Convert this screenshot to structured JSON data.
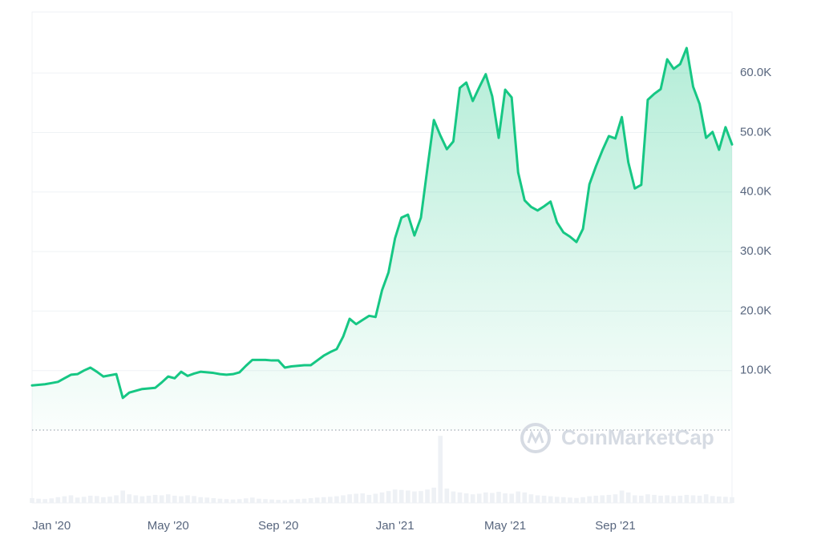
{
  "chart_data": {
    "type": "line",
    "categories": [
      null,
      null,
      null,
      "Jan '20",
      null,
      null,
      null,
      null,
      null,
      null,
      null,
      null,
      null,
      null,
      null,
      null,
      null,
      null,
      null,
      null,
      null,
      "May '20",
      null,
      null,
      null,
      null,
      null,
      null,
      null,
      null,
      null,
      null,
      null,
      null,
      null,
      null,
      null,
      null,
      "Sep '20",
      null,
      null,
      null,
      null,
      null,
      null,
      null,
      null,
      null,
      null,
      null,
      null,
      null,
      null,
      null,
      null,
      null,
      "Jan '21",
      null,
      null,
      null,
      null,
      null,
      null,
      null,
      null,
      null,
      null,
      null,
      null,
      null,
      null,
      null,
      null,
      "May '21",
      null,
      null,
      null,
      null,
      null,
      null,
      null,
      null,
      null,
      null,
      null,
      null,
      null,
      null,
      null,
      null,
      "Sep '21",
      null,
      null,
      null,
      null,
      null,
      null,
      null,
      null,
      null,
      null,
      null,
      null,
      null,
      null,
      null,
      null,
      null,
      null
    ],
    "series": [
      {
        "color": "#16c784",
        "values": [
          7500,
          7600,
          7700,
          7900,
          8100,
          8700,
          9300,
          9400,
          10000,
          10500,
          9800,
          9000,
          9200,
          9400,
          5400,
          6300,
          6600,
          6900,
          7000,
          7100,
          8000,
          9000,
          8700,
          9800,
          9100,
          9500,
          9800,
          9700,
          9600,
          9400,
          9300,
          9400,
          9700,
          10800,
          11800,
          11800,
          11800,
          11700,
          11700,
          10500,
          10700,
          10800,
          10900,
          10900,
          11700,
          12500,
          13100,
          13600,
          15700,
          18700,
          17800,
          18500,
          19200,
          19000,
          23500,
          26500,
          32200,
          35700,
          36200,
          32700,
          35700,
          44000,
          52100,
          49500,
          47200,
          48500,
          57500,
          58400,
          55300,
          57600,
          59800,
          56100,
          49100,
          57200,
          55900,
          43300,
          38600,
          37500,
          36900,
          37600,
          38400,
          34900,
          33200,
          32500,
          31600,
          33800,
          41300,
          44300,
          47000,
          49400,
          49000,
          52600,
          45000,
          40600,
          41200,
          55500,
          56500,
          57300,
          62300,
          60700,
          61500,
          64200,
          57700,
          54800,
          49100,
          50100,
          47100,
          50900,
          48000
        ]
      },
      {
        "type": "bar",
        "axis": "y2",
        "color": "#eef1f5",
        "values": [
          25,
          22,
          20,
          24,
          30,
          35,
          40,
          28,
          32,
          38,
          36,
          30,
          33,
          40,
          65,
          45,
          40,
          35,
          38,
          42,
          40,
          45,
          38,
          35,
          40,
          36,
          30,
          28,
          25,
          22,
          20,
          18,
          20,
          24,
          28,
          22,
          20,
          18,
          16,
          15,
          18,
          20,
          22,
          25,
          28,
          30,
          32,
          35,
          40,
          45,
          48,
          50,
          42,
          48,
          55,
          62,
          70,
          68,
          65,
          60,
          62,
          70,
          80,
          350,
          75,
          60,
          55,
          50,
          45,
          48,
          55,
          52,
          58,
          50,
          48,
          60,
          55,
          45,
          40,
          38,
          35,
          32,
          30,
          28,
          26,
          30,
          35,
          38,
          40,
          42,
          45,
          65,
          55,
          40,
          38,
          45,
          42,
          38,
          40,
          36,
          38,
          42,
          40,
          38,
          45,
          36,
          34,
          32,
          30
        ]
      }
    ],
    "ylim": [
      0,
      70250
    ],
    "yticks": [
      {
        "value": 10000,
        "label": "10.0K"
      },
      {
        "value": 20000,
        "label": "20.0K"
      },
      {
        "value": 30000,
        "label": "30.0K"
      },
      {
        "value": 40000,
        "label": "40.0K"
      },
      {
        "value": 50000,
        "label": "50.0K"
      },
      {
        "value": 60000,
        "label": "60.0K"
      }
    ],
    "y2lim": [
      0,
      380
    ],
    "grid": true,
    "watermark": "CoinMarketCap"
  }
}
